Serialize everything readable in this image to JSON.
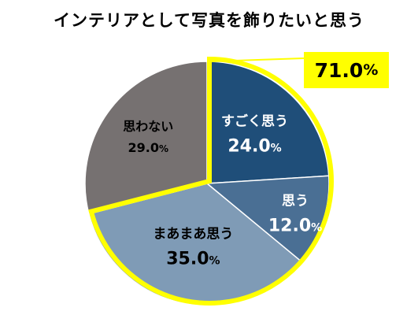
{
  "chart_data": {
    "type": "pie",
    "title": "インテリアとして写真を飾りたいと思う",
    "slices": [
      {
        "label": "すごく思う",
        "value": 24.0,
        "value_text": "24.0",
        "color": "#1f4e79",
        "label_color": "#ffffff"
      },
      {
        "label": "思う",
        "value": 12.0,
        "value_text": "12.0",
        "color": "#4a6f94",
        "label_color": "#ffffff"
      },
      {
        "label": "まあまあ思う",
        "value": 35.0,
        "value_text": "35.0",
        "color": "#7f9bb6",
        "label_color": "#000000"
      },
      {
        "label": "思わない",
        "value": 29.0,
        "value_text": "29.0",
        "color": "#767171",
        "label_color": "#000000"
      }
    ],
    "percent_symbol": "%",
    "highlight": {
      "value_text": "71.0",
      "outline_color": "#ffff00",
      "callout_color": "#ffff00"
    }
  }
}
